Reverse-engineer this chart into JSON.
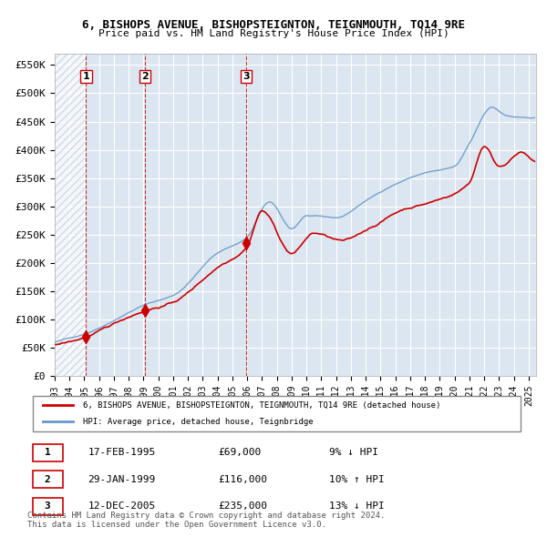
{
  "title": "6, BISHOPS AVENUE, BISHOPSTEIGNTON, TEIGNMOUTH, TQ14 9RE",
  "subtitle": "Price paid vs. HM Land Registry's House Price Index (HPI)",
  "xlabel": "",
  "ylabel": "",
  "ylim": [
    0,
    570000
  ],
  "yticks": [
    0,
    50000,
    100000,
    150000,
    200000,
    250000,
    300000,
    350000,
    400000,
    450000,
    500000,
    550000
  ],
  "ytick_labels": [
    "£0",
    "£50K",
    "£100K",
    "£150K",
    "£200K",
    "£250K",
    "£300K",
    "£350K",
    "£400K",
    "£450K",
    "£500K",
    "£550K"
  ],
  "bg_color": "#dce6f1",
  "plot_bg": "#dce6f1",
  "grid_color": "#ffffff",
  "hatch_color": "#c0cfe0",
  "red_line_color": "#cc0000",
  "blue_line_color": "#6699cc",
  "sale_marker_color": "#cc0000",
  "vline_color": "#cc0000",
  "sale1_date_x": 1995.12,
  "sale1_price": 69000,
  "sale2_date_x": 1999.08,
  "sale2_price": 116000,
  "sale3_date_x": 2005.95,
  "sale3_price": 235000,
  "legend_label_red": "6, BISHOPS AVENUE, BISHOPSTEIGNTON, TEIGNMOUTH, TQ14 9RE (detached house)",
  "legend_label_blue": "HPI: Average price, detached house, Teignbridge",
  "table_rows": [
    {
      "num": "1",
      "date": "17-FEB-1995",
      "price": "£69,000",
      "hpi": "9% ↓ HPI"
    },
    {
      "num": "2",
      "date": "29-JAN-1999",
      "price": "£116,000",
      "hpi": "10% ↑ HPI"
    },
    {
      "num": "3",
      "date": "12-DEC-2005",
      "price": "£235,000",
      "hpi": "13% ↓ HPI"
    }
  ],
  "footnote": "Contains HM Land Registry data © Crown copyright and database right 2024.\nThis data is licensed under the Open Government Licence v3.0.",
  "xmin": 1993.0,
  "xmax": 2025.5
}
